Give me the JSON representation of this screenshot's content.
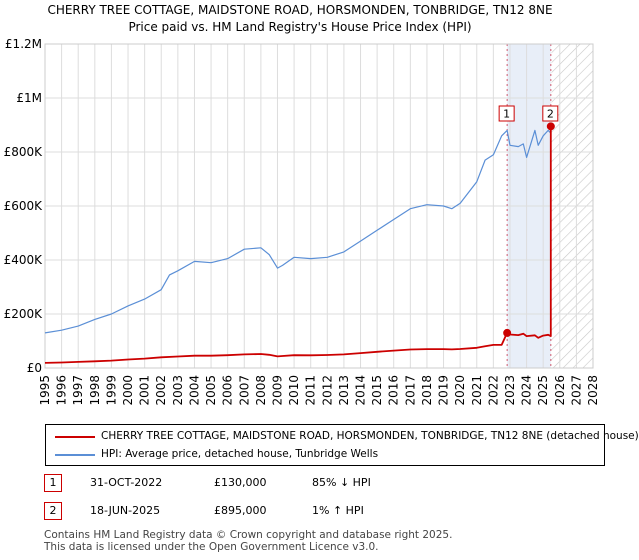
{
  "chart_data": {
    "type": "line",
    "title": "CHERRY TREE COTTAGE, MAIDSTONE ROAD, HORSMONDEN, TONBRIDGE, TN12 8NE",
    "subtitle": "Price paid vs. HM Land Registry's House Price Index (HPI)",
    "xlabel": "",
    "ylabel": "",
    "xlim": [
      1995,
      2028
    ],
    "ylim": [
      0,
      1200000
    ],
    "x_ticks": [
      "1995",
      "1996",
      "1997",
      "1998",
      "1999",
      "2000",
      "2001",
      "2002",
      "2003",
      "2004",
      "2005",
      "2006",
      "2007",
      "2008",
      "2009",
      "2010",
      "2011",
      "2012",
      "2013",
      "2014",
      "2015",
      "2016",
      "2017",
      "2018",
      "2019",
      "2020",
      "2021",
      "2022",
      "2023",
      "2024",
      "2025",
      "2026",
      "2027",
      "2028"
    ],
    "y_ticks": [
      {
        "value": 0,
        "label": "£0"
      },
      {
        "value": 200000,
        "label": "£200K"
      },
      {
        "value": 400000,
        "label": "£400K"
      },
      {
        "value": 600000,
        "label": "£600K"
      },
      {
        "value": 800000,
        "label": "£800K"
      },
      {
        "value": 1000000,
        "label": "£1M"
      },
      {
        "value": 1200000,
        "label": "£1.2M"
      }
    ],
    "grid": true,
    "forecast_start": 2025.5,
    "sale_period": [
      2022.83,
      2025.46
    ],
    "series": [
      {
        "name": "CHERRY TREE COTTAGE, MAIDSTONE ROAD, HORSMONDEN, TONBRIDGE, TN12 8NE (detached house)",
        "color": "#cc0000",
        "x": [
          1995.0,
          1996.0,
          1997.0,
          1998.0,
          1999.0,
          2000.0,
          2001.0,
          2002.0,
          2003.0,
          2004.0,
          2005.0,
          2006.0,
          2007.0,
          2008.0,
          2008.5,
          2009.0,
          2009.3,
          2010.0,
          2011.0,
          2012.0,
          2013.0,
          2014.0,
          2015.0,
          2016.0,
          2017.0,
          2018.0,
          2019.0,
          2019.5,
          2020.0,
          2021.0,
          2021.5,
          2022.0,
          2022.5,
          2022.83,
          2023.0,
          2023.5,
          2023.8,
          2024.0,
          2024.5,
          2024.7,
          2025.0,
          2025.3,
          2025.46,
          2025.46
        ],
        "values": [
          19000,
          20500,
          22500,
          25000,
          27500,
          31500,
          35000,
          39500,
          42500,
          45500,
          45500,
          47500,
          50500,
          52000,
          49000,
          43000,
          44500,
          47500,
          47000,
          48000,
          50500,
          55000,
          60000,
          64500,
          68500,
          70000,
          70000,
          69000,
          70500,
          75000,
          80500,
          85500,
          86000,
          130000,
          124000,
          122000,
          127000,
          118000,
          121000,
          112000,
          120000,
          123000,
          118000,
          895000
        ]
      },
      {
        "name": "HPI: Average price, detached house, Tunbridge Wells",
        "color": "#5b8fd6",
        "x": [
          1995.0,
          1996.0,
          1997.0,
          1998.0,
          1999.0,
          2000.0,
          2001.0,
          2002.0,
          2002.5,
          2003.0,
          2004.0,
          2005.0,
          2006.0,
          2007.0,
          2008.0,
          2008.5,
          2009.0,
          2009.3,
          2010.0,
          2011.0,
          2012.0,
          2013.0,
          2014.0,
          2015.0,
          2016.0,
          2017.0,
          2018.0,
          2019.0,
          2019.5,
          2020.0,
          2021.0,
          2021.5,
          2022.0,
          2022.5,
          2022.83,
          2023.0,
          2023.5,
          2023.8,
          2024.0,
          2024.5,
          2024.7,
          2025.0,
          2025.3,
          2025.46
        ],
        "values": [
          130000,
          140000,
          155000,
          180000,
          200000,
          230000,
          255000,
          290000,
          345000,
          360000,
          395000,
          390000,
          405000,
          440000,
          445000,
          420000,
          370000,
          380000,
          410000,
          405000,
          410000,
          430000,
          470000,
          510000,
          550000,
          590000,
          605000,
          600000,
          590000,
          610000,
          690000,
          770000,
          790000,
          860000,
          880000,
          825000,
          820000,
          830000,
          780000,
          880000,
          825000,
          860000,
          880000,
          870000
        ]
      }
    ],
    "sales": [
      {
        "label": "1",
        "x": 2022.83,
        "value": 130000
      },
      {
        "label": "2",
        "x": 2025.46,
        "value": 895000
      }
    ]
  },
  "legend": {
    "red_label": "CHERRY TREE COTTAGE, MAIDSTONE ROAD, HORSMONDEN, TONBRIDGE, TN12 8NE (detached house)",
    "blue_label": "HPI: Average price, detached house, Tunbridge Wells"
  },
  "sales_table": [
    {
      "num": "1",
      "date": "31-OCT-2022",
      "price": "£130,000",
      "hpi": "85% ↓ HPI"
    },
    {
      "num": "2",
      "date": "18-JUN-2025",
      "price": "£895,000",
      "hpi": "1% ↑ HPI"
    }
  ],
  "footer": {
    "line1": "Contains HM Land Registry data © Crown copyright and database right 2025.",
    "line2": "This data is licensed under the Open Government Licence v3.0."
  },
  "colors": {
    "red": "#cc0000",
    "blue": "#5b8fd6",
    "grid": "#dddddd",
    "shade": "#e8eef8"
  }
}
